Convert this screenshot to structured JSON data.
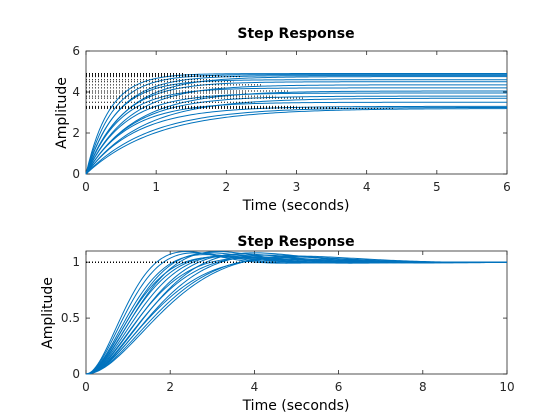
{
  "chart_data": [
    {
      "type": "line",
      "title": "Step Response",
      "xlabel": "Time (seconds)",
      "ylabel": "Amplitude",
      "xlim": [
        0,
        6
      ],
      "ylim": [
        0,
        6
      ],
      "xticks": [
        0,
        1,
        2,
        3,
        4,
        5,
        6
      ],
      "yticks": [
        0,
        2,
        4,
        6
      ],
      "grid": false,
      "legend": "none",
      "color": "#0072BD",
      "response_shape": "first-order",
      "series": [
        {
          "gain": 4.9,
          "time_constant": 0.33,
          "settling_time": 1.4
        },
        {
          "gain": 4.85,
          "time_constant": 0.38,
          "settling_time": 1.6
        },
        {
          "gain": 4.8,
          "time_constant": 0.45,
          "settling_time": 1.9
        },
        {
          "gain": 4.75,
          "time_constant": 0.55,
          "settling_time": 2.2
        },
        {
          "gain": 4.6,
          "time_constant": 0.42,
          "settling_time": 1.8
        },
        {
          "gain": 4.5,
          "time_constant": 0.5,
          "settling_time": 2.1
        },
        {
          "gain": 4.35,
          "time_constant": 0.6,
          "settling_time": 2.5
        },
        {
          "gain": 4.2,
          "time_constant": 0.48,
          "settling_time": 2.0
        },
        {
          "gain": 4.05,
          "time_constant": 0.7,
          "settling_time": 2.9
        },
        {
          "gain": 3.95,
          "time_constant": 0.55,
          "settling_time": 2.3
        },
        {
          "gain": 3.8,
          "time_constant": 0.65,
          "settling_time": 2.7
        },
        {
          "gain": 3.7,
          "time_constant": 0.8,
          "settling_time": 3.1
        },
        {
          "gain": 3.5,
          "time_constant": 0.6,
          "settling_time": 2.4
        },
        {
          "gain": 3.3,
          "time_constant": 0.72,
          "settling_time": 3.0
        },
        {
          "gain": 3.25,
          "time_constant": 0.9,
          "settling_time": 3.6
        },
        {
          "gain": 3.2,
          "time_constant": 1.0,
          "settling_time": 4.4
        }
      ]
    },
    {
      "type": "line",
      "title": "Step Response",
      "xlabel": "Time (seconds)",
      "ylabel": "Amplitude",
      "xlim": [
        0,
        10
      ],
      "ylim": [
        0,
        1.1
      ],
      "xticks": [
        0,
        2,
        4,
        6,
        8,
        10
      ],
      "yticks": [
        0,
        0.5,
        1
      ],
      "grid": false,
      "legend": "none",
      "color": "#0072BD",
      "final_value": 1,
      "response_shape": "second-order",
      "series": [
        {
          "natural_frequency": 1.65,
          "damping_ratio": 0.6
        },
        {
          "natural_frequency": 1.55,
          "damping_ratio": 0.62
        },
        {
          "natural_frequency": 1.45,
          "damping_ratio": 0.65
        },
        {
          "natural_frequency": 1.4,
          "damping_ratio": 0.7
        },
        {
          "natural_frequency": 1.35,
          "damping_ratio": 0.62
        },
        {
          "natural_frequency": 1.3,
          "damping_ratio": 0.68
        },
        {
          "natural_frequency": 1.25,
          "damping_ratio": 0.6
        },
        {
          "natural_frequency": 1.2,
          "damping_ratio": 0.66
        },
        {
          "natural_frequency": 1.15,
          "damping_ratio": 0.72
        },
        {
          "natural_frequency": 1.1,
          "damping_ratio": 0.64
        },
        {
          "natural_frequency": 1.05,
          "damping_ratio": 0.7
        },
        {
          "natural_frequency": 1.0,
          "damping_ratio": 0.62
        },
        {
          "natural_frequency": 0.98,
          "damping_ratio": 0.75
        },
        {
          "natural_frequency": 0.95,
          "damping_ratio": 0.66
        },
        {
          "natural_frequency": 0.9,
          "damping_ratio": 0.7
        },
        {
          "natural_frequency": 0.85,
          "damping_ratio": 0.68
        }
      ]
    }
  ]
}
